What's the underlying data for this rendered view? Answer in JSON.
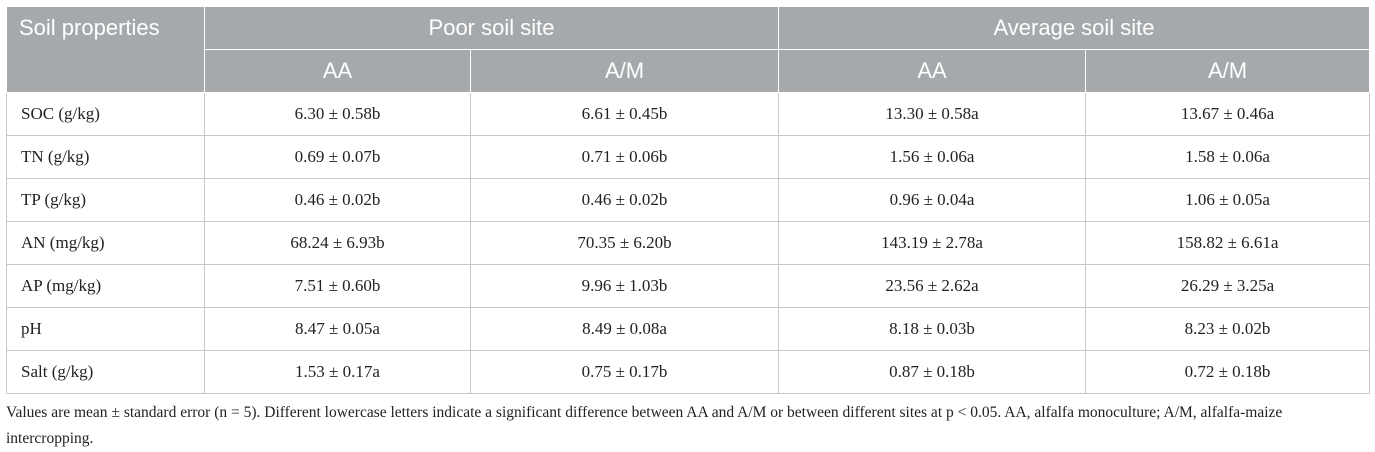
{
  "table": {
    "header": {
      "corner": "Soil properties",
      "groups": [
        "Poor soil site",
        "Average soil site"
      ],
      "subheaders": [
        "AA",
        "A/M",
        "AA",
        "A/M"
      ]
    },
    "rows": [
      [
        "SOC (g/kg)",
        "6.30 ± 0.58b",
        "6.61 ± 0.45b",
        "13.30 ± 0.58a",
        "13.67 ± 0.46a"
      ],
      [
        "TN (g/kg)",
        "0.69 ± 0.07b",
        "0.71 ± 0.06b",
        "1.56 ± 0.06a",
        "1.58 ± 0.06a"
      ],
      [
        "TP (g/kg)",
        "0.46 ± 0.02b",
        "0.46 ± 0.02b",
        "0.96 ± 0.04a",
        "1.06 ± 0.05a"
      ],
      [
        "AN (mg/kg)",
        "68.24 ± 6.93b",
        "70.35 ± 6.20b",
        "143.19 ± 2.78a",
        "158.82 ± 6.61a"
      ],
      [
        "AP (mg/kg)",
        "7.51 ± 0.60b",
        "9.96 ± 1.03b",
        "23.56 ± 2.62a",
        "26.29 ± 3.25a"
      ],
      [
        "pH",
        "8.47 ± 0.05a",
        "8.49 ± 0.08a",
        "8.18 ± 0.03b",
        "8.23 ± 0.02b"
      ],
      [
        "Salt (g/kg)",
        "1.53 ± 0.17a",
        "0.75 ± 0.17b",
        "0.87 ± 0.18b",
        "0.72 ± 0.18b"
      ]
    ]
  },
  "footnote": "Values are mean ± standard error (n = 5). Different lowercase letters indicate a significant difference between AA and A/M or between different sites at p < 0.05. AA, alfalfa monoculture; A/M, alfalfa-maize intercropping."
}
